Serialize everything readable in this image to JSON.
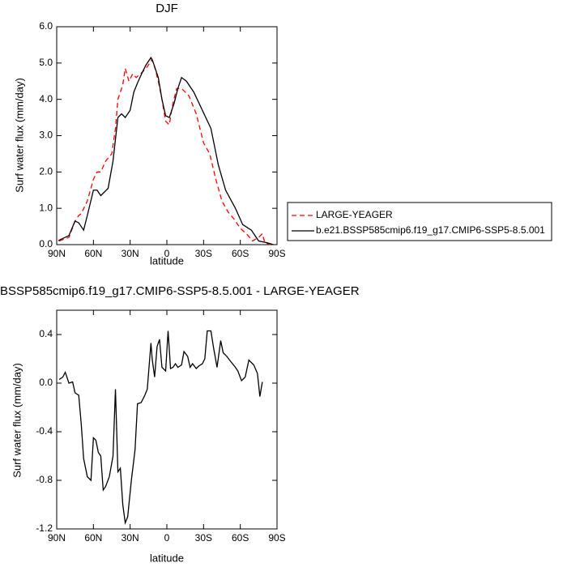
{
  "chart_data": [
    {
      "type": "line",
      "title": "DJF",
      "x_label": "latitude",
      "y_label": "Surf water flux (mm/day)",
      "xlim": [
        90,
        -90
      ],
      "ylim": [
        0,
        6
      ],
      "xticks": [
        {
          "value": 90,
          "label": "90N"
        },
        {
          "value": 60,
          "label": "60N"
        },
        {
          "value": 30,
          "label": "30N"
        },
        0,
        {
          "value": -30,
          "label": "30S"
        },
        {
          "value": -60,
          "label": "60S"
        },
        {
          "value": -90,
          "label": "90S"
        }
      ],
      "yticks": [
        {
          "value": 0,
          "label": "0.0"
        },
        {
          "value": 1,
          "label": "1.0"
        },
        {
          "value": 2,
          "label": "2.0"
        },
        {
          "value": 3,
          "label": "3.0"
        },
        {
          "value": 4,
          "label": "4.0"
        },
        {
          "value": 5,
          "label": "5.0"
        },
        {
          "value": 6,
          "label": "6.0"
        }
      ],
      "legend": "right",
      "series": [
        {
          "name": "LARGE-YEAGER",
          "color": "#ff0000",
          "line_style": "dashed",
          "x": [
            88,
            80,
            75,
            72,
            70,
            65,
            60,
            57,
            54,
            50,
            45,
            42,
            40,
            36,
            34,
            31,
            28,
            25,
            20,
            16,
            12,
            10,
            7,
            4,
            1,
            -2,
            -5,
            -8,
            -12,
            -18,
            -24,
            -30,
            -35,
            -40,
            -45,
            -50,
            -55,
            -60,
            -65,
            -70,
            -75,
            -78,
            -80,
            -85
          ],
          "values": [
            0.1,
            0.2,
            0.65,
            0.8,
            0.85,
            1.2,
            1.8,
            2.0,
            2.0,
            2.3,
            2.5,
            3.2,
            4.0,
            4.4,
            4.85,
            4.5,
            4.7,
            4.6,
            4.75,
            4.9,
            5.1,
            4.9,
            4.5,
            4.0,
            3.4,
            3.3,
            3.9,
            4.3,
            4.3,
            4.1,
            3.6,
            2.8,
            2.5,
            1.8,
            1.2,
            0.9,
            0.7,
            0.45,
            0.3,
            0.1,
            0.2,
            0.3,
            0.05,
            0.0
          ]
        },
        {
          "name": "b.e21.BSSP585cmip6.f19_g17.CMIP6-SSP5-8.5.001",
          "color": "#000000",
          "line_style": "solid",
          "x": [
            88.7,
            80,
            75,
            72,
            68,
            65,
            60,
            57,
            54,
            48,
            44,
            40,
            37,
            34,
            30,
            27,
            24,
            20,
            17,
            13,
            11,
            7,
            4,
            1,
            -2,
            -6,
            -9,
            -12,
            -16,
            -22,
            -29,
            -36,
            -42,
            -48,
            -56,
            -62,
            -69,
            -75,
            -82,
            -87
          ],
          "values": [
            0.11,
            0.25,
            0.65,
            0.6,
            0.4,
            0.8,
            1.5,
            1.5,
            1.35,
            1.55,
            2.3,
            3.5,
            3.6,
            3.5,
            3.7,
            4.2,
            4.45,
            4.75,
            4.95,
            5.15,
            5.0,
            4.6,
            4.0,
            3.55,
            3.5,
            3.9,
            4.3,
            4.6,
            4.5,
            4.2,
            3.7,
            3.2,
            2.2,
            1.5,
            1.0,
            0.55,
            0.4,
            0.1,
            0.05,
            0.0
          ]
        }
      ]
    },
    {
      "type": "line",
      "title": "BSSP585cmip6.f19_g17.CMIP6-SSP5-8.5.001 - LARGE-YEAGER",
      "x_label": "latitude",
      "y_label": "Surf water flux (mm/day)",
      "xlim": [
        90,
        -90
      ],
      "ylim": [
        -1.2,
        0.6
      ],
      "xticks": [
        {
          "value": 90,
          "label": "90N"
        },
        {
          "value": 60,
          "label": "60N"
        },
        {
          "value": 30,
          "label": "30N"
        },
        0,
        {
          "value": -30,
          "label": "30S"
        },
        {
          "value": -60,
          "label": "60S"
        },
        {
          "value": -90,
          "label": "90S"
        }
      ],
      "yticks": [
        0.4,
        {
          "value": 0,
          "label": "0.0"
        },
        -0.4,
        -0.8,
        -1.2
      ],
      "color": "#000000",
      "x": [
        88,
        85,
        83,
        80,
        77,
        75,
        72,
        70,
        68,
        65,
        62,
        60,
        58,
        56,
        54,
        52,
        50,
        47,
        44,
        42,
        40,
        38,
        36,
        34,
        32,
        29,
        26,
        24,
        21,
        18,
        16,
        13,
        12,
        10,
        8,
        6,
        4,
        1,
        -1,
        -3,
        -5,
        -7,
        -9,
        -12,
        -14,
        -17,
        -19,
        -21,
        -24,
        -26,
        -29,
        -31,
        -33,
        -36,
        -38,
        -41,
        -44,
        -46,
        -49,
        -52,
        -56,
        -58,
        -61,
        -64,
        -67,
        -71,
        -74,
        -76,
        -78
      ],
      "values": [
        0.03,
        0.05,
        0.09,
        0.0,
        0.01,
        -0.08,
        -0.1,
        -0.33,
        -0.62,
        -0.77,
        -0.8,
        -0.45,
        -0.47,
        -0.57,
        -0.6,
        -0.88,
        -0.85,
        -0.77,
        -0.6,
        -0.05,
        -0.73,
        -0.7,
        -1.0,
        -1.15,
        -1.1,
        -0.8,
        -0.55,
        -0.17,
        -0.16,
        -0.1,
        -0.05,
        0.33,
        0.2,
        0.05,
        0.3,
        0.36,
        0.13,
        0.1,
        0.43,
        0.12,
        0.13,
        0.16,
        0.13,
        0.15,
        0.26,
        0.22,
        0.13,
        0.16,
        0.12,
        0.14,
        0.16,
        0.2,
        0.43,
        0.43,
        0.3,
        0.13,
        0.35,
        0.25,
        0.22,
        0.18,
        0.13,
        0.1,
        0.02,
        0.05,
        0.19,
        0.15,
        0.08,
        -0.11,
        0.01
      ]
    }
  ]
}
